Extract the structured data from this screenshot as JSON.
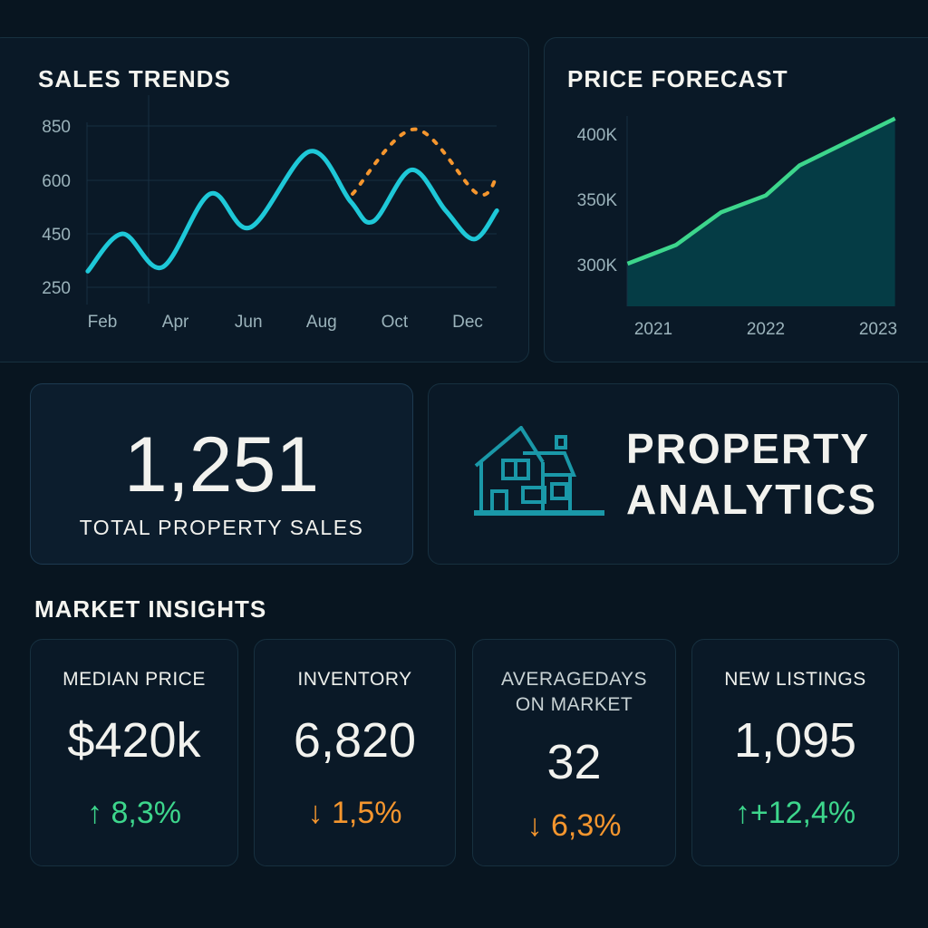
{
  "colors": {
    "background": "#081520",
    "card": "#0a1927",
    "sales_line": "#1ec8d8",
    "forecast_line": "#f5962e",
    "price_line": "#3dd68c",
    "price_fill": "#053c45",
    "positive": "#3dd68c",
    "negative": "#f5962e",
    "icon": "#1a98a8"
  },
  "chart_data": [
    {
      "type": "line",
      "title": "SALES TRENDS",
      "y_ticks": [
        250,
        450,
        600,
        850
      ],
      "x_ticks": [
        {
          "label": "Feb",
          "month": 2
        },
        {
          "label": "Apr",
          "month": 4
        },
        {
          "label": "Jun",
          "month": 6
        },
        {
          "label": "Aug",
          "month": 8
        },
        {
          "label": "Oct",
          "month": 10
        },
        {
          "label": "Dec",
          "month": 12
        }
      ],
      "grid": true,
      "series": [
        {
          "style": "solid",
          "color": "#1ec8d8",
          "points": [
            [
              1.6,
              310
            ],
            [
              2.55,
              450
            ],
            [
              3.64,
              325
            ],
            [
              4.95,
              562
            ],
            [
              6.05,
              468
            ],
            [
              7.68,
              733
            ],
            [
              8.8,
              540
            ],
            [
              9.42,
              485
            ],
            [
              10.46,
              648
            ],
            [
              11.4,
              515
            ],
            [
              12.17,
              430
            ],
            [
              12.8,
              515
            ]
          ]
        },
        {
          "style": "dotted",
          "color": "#f5962e",
          "points": [
            [
              8.85,
              562
            ],
            [
              10.55,
              835
            ],
            [
              12.25,
              564
            ],
            [
              12.8,
              615
            ]
          ]
        }
      ]
    },
    {
      "type": "area",
      "title": "PRICE FORECAST",
      "y_ticks": [
        {
          "label": "300K",
          "value": 300000
        },
        {
          "label": "350K",
          "value": 350000
        },
        {
          "label": "400K",
          "value": 400000
        }
      ],
      "x_ticks": [
        {
          "label": "2021",
          "value": 2021
        },
        {
          "label": "2022",
          "value": 2022
        },
        {
          "label": "2023",
          "value": 2023
        }
      ],
      "ylim": [
        285000,
        412000
      ],
      "series": [
        {
          "color": "#3dd68c",
          "points": [
            [
              2020.77,
              300700
            ],
            [
              2021.2,
              315000
            ],
            [
              2021.6,
              340000
            ],
            [
              2022.0,
              353000
            ],
            [
              2022.3,
              376000
            ],
            [
              2023.15,
              412000
            ]
          ]
        }
      ]
    }
  ],
  "total": {
    "value": "1,251",
    "label": "TOTAL PROPERTY SALES"
  },
  "brand": {
    "line1": "PROPERTY",
    "line2": "ANALYTICS",
    "icon": "house-icon"
  },
  "insights": {
    "title": "MARKET INSIGHTS",
    "cards": [
      {
        "label": "MEDIAN PRICE",
        "value": "$420k",
        "arrow": "↑",
        "change": "8,3%",
        "trend": "up"
      },
      {
        "label": "INVENTORY",
        "value": "6,820",
        "arrow": "↓",
        "change": "1,5%",
        "trend": "down"
      },
      {
        "label": "AVERAGEDAYS",
        "label2": "ON MARKET",
        "value": "32",
        "arrow": "↓",
        "change": "6,3%",
        "trend": "down"
      },
      {
        "label": "NEW LISTINGS",
        "value": "1,095",
        "arrow": "↑",
        "change": "+12,4%",
        "trend": "up"
      }
    ]
  }
}
